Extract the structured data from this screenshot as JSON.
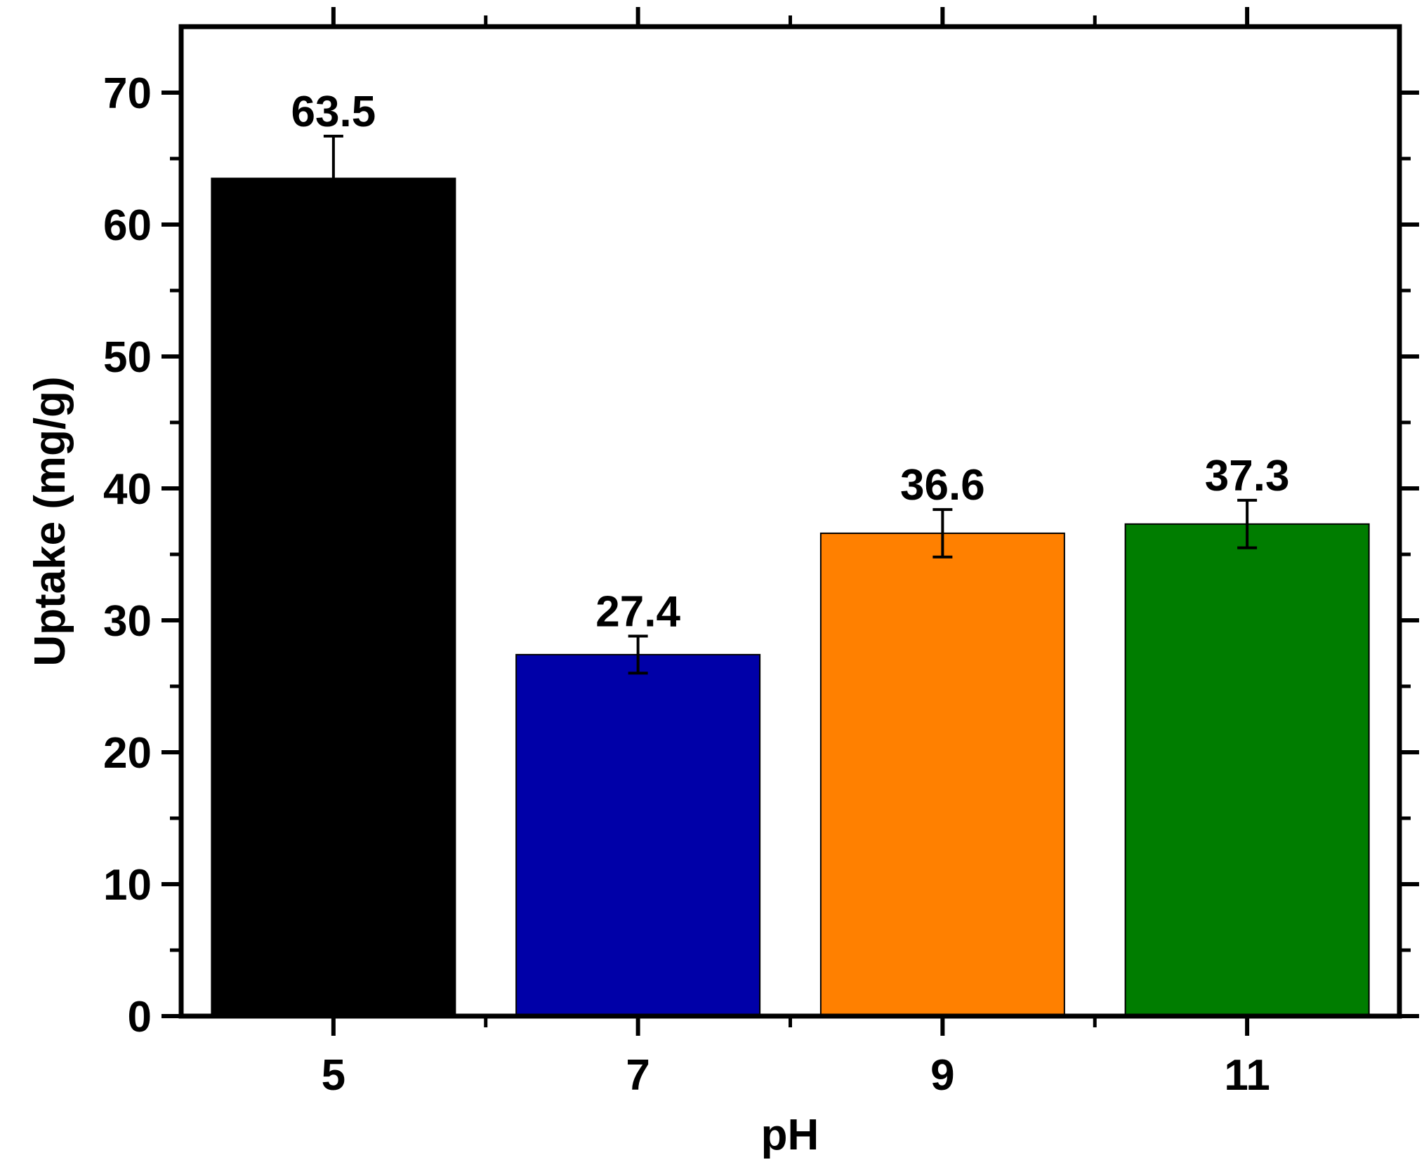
{
  "chart_data": {
    "type": "bar",
    "xlabel": "pH",
    "ylabel": "Uptake (mg/g)",
    "categories": [
      "5",
      "7",
      "9",
      "11"
    ],
    "values": [
      63.5,
      27.4,
      36.6,
      37.3
    ],
    "error_plus": [
      3.2,
      1.4,
      1.8,
      1.8
    ],
    "error_minus": [
      0,
      1.4,
      1.8,
      1.8
    ],
    "value_labels": [
      "63.5",
      "27.4",
      "36.6",
      "37.3"
    ],
    "bar_colors": [
      "#000000",
      "#0000A8",
      "#FF8000",
      "#007D00"
    ],
    "ylim": [
      0,
      75
    ],
    "yticks": [
      0,
      10,
      20,
      30,
      40,
      50,
      60,
      70
    ],
    "ytick_labels": [
      "0",
      "10",
      "20",
      "30",
      "40",
      "50",
      "60",
      "70"
    ],
    "grid": false,
    "legend": "none"
  }
}
